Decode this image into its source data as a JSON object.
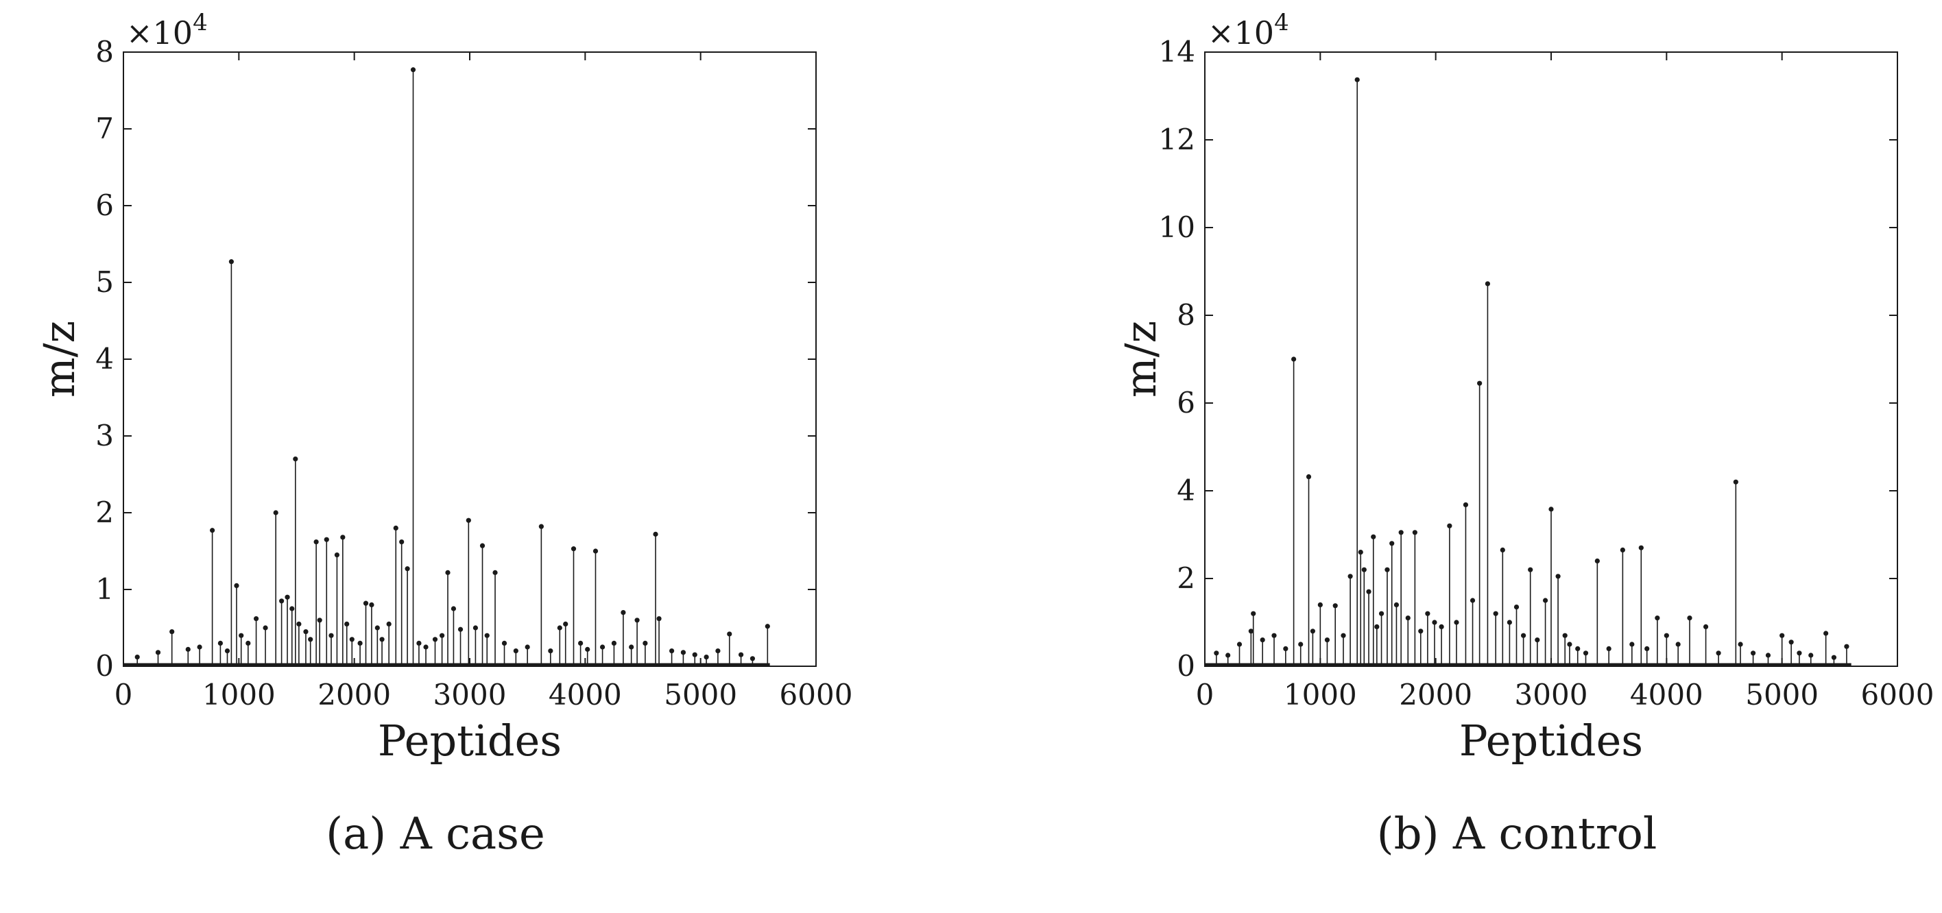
{
  "chart_data": [
    {
      "type": "stem",
      "caption": "(a) A case",
      "xlabel": "Peptides",
      "ylabel": "m/z",
      "y_multiplier": "×10",
      "y_multiplier_exp": "4",
      "xlim": [
        0,
        6000
      ],
      "ylim": [
        0,
        8
      ],
      "xticks": [
        "0",
        "1000",
        "2000",
        "3000",
        "4000",
        "5000",
        "6000"
      ],
      "yticks": [
        "0",
        "1",
        "2",
        "3",
        "4",
        "5",
        "6",
        "7",
        "8"
      ],
      "y_units": "×10^4",
      "x": [
        120,
        300,
        420,
        560,
        660,
        770,
        840,
        900,
        935,
        980,
        1020,
        1080,
        1150,
        1230,
        1320,
        1370,
        1420,
        1460,
        1490,
        1520,
        1580,
        1620,
        1670,
        1700,
        1760,
        1800,
        1850,
        1900,
        1935,
        1980,
        2050,
        2100,
        2150,
        2200,
        2240,
        2300,
        2360,
        2410,
        2460,
        2510,
        2560,
        2620,
        2700,
        2760,
        2810,
        2860,
        2920,
        2990,
        3050,
        3110,
        3150,
        3220,
        3300,
        3400,
        3500,
        3620,
        3700,
        3780,
        3830,
        3900,
        3960,
        4020,
        4090,
        4150,
        4250,
        4330,
        4400,
        4450,
        4520,
        4610,
        4640,
        4750,
        4850,
        4950,
        5050,
        5150,
        5250,
        5350,
        5450,
        5580
      ],
      "y": [
        0.12,
        0.18,
        0.45,
        0.22,
        0.25,
        1.77,
        0.3,
        0.2,
        5.27,
        1.05,
        0.4,
        0.3,
        0.62,
        0.5,
        2.0,
        0.85,
        0.9,
        0.75,
        2.7,
        0.55,
        0.45,
        0.35,
        1.62,
        0.6,
        1.65,
        0.4,
        1.45,
        1.68,
        0.55,
        0.35,
        0.3,
        0.82,
        0.8,
        0.5,
        0.35,
        0.55,
        1.8,
        1.62,
        1.27,
        7.77,
        0.3,
        0.25,
        0.35,
        0.4,
        1.22,
        0.75,
        0.48,
        1.9,
        0.5,
        1.57,
        0.4,
        1.22,
        0.3,
        0.2,
        0.25,
        1.82,
        0.2,
        0.5,
        0.55,
        1.53,
        0.3,
        0.22,
        1.5,
        0.25,
        0.3,
        0.7,
        0.25,
        0.6,
        0.3,
        1.72,
        0.62,
        0.2,
        0.18,
        0.15,
        0.12,
        0.2,
        0.42,
        0.15,
        0.1,
        0.52
      ]
    },
    {
      "type": "stem",
      "caption": "(b) A control",
      "xlabel": "Peptides",
      "ylabel": "m/z",
      "y_multiplier": "×10",
      "y_multiplier_exp": "4",
      "xlim": [
        0,
        6000
      ],
      "ylim": [
        0,
        14
      ],
      "xticks": [
        "0",
        "1000",
        "2000",
        "3000",
        "4000",
        "5000",
        "6000"
      ],
      "yticks": [
        "0",
        "2",
        "4",
        "6",
        "8",
        "10",
        "12",
        "14"
      ],
      "y_units": "×10^4",
      "x": [
        100,
        200,
        300,
        400,
        420,
        500,
        600,
        700,
        770,
        830,
        900,
        935,
        1000,
        1060,
        1130,
        1200,
        1260,
        1320,
        1350,
        1380,
        1420,
        1460,
        1490,
        1530,
        1580,
        1620,
        1660,
        1700,
        1760,
        1820,
        1870,
        1930,
        1990,
        2050,
        2120,
        2180,
        2260,
        2320,
        2380,
        2450,
        2520,
        2580,
        2640,
        2700,
        2760,
        2820,
        2880,
        2950,
        3000,
        3060,
        3120,
        3160,
        3230,
        3300,
        3400,
        3500,
        3620,
        3700,
        3780,
        3830,
        3920,
        4000,
        4100,
        4200,
        4340,
        4450,
        4600,
        4640,
        4750,
        4880,
        5000,
        5080,
        5150,
        5250,
        5380,
        5450,
        5560
      ],
      "y": [
        0.3,
        0.25,
        0.5,
        0.8,
        1.2,
        0.6,
        0.7,
        0.4,
        7.0,
        0.5,
        4.32,
        0.8,
        1.4,
        0.6,
        1.38,
        0.7,
        2.05,
        13.37,
        2.6,
        2.2,
        1.7,
        2.95,
        0.9,
        1.2,
        2.2,
        2.8,
        1.4,
        3.05,
        1.1,
        3.05,
        0.8,
        1.2,
        1.0,
        0.9,
        3.2,
        1.0,
        3.68,
        1.5,
        6.45,
        8.72,
        1.2,
        2.65,
        1.0,
        1.35,
        0.7,
        2.2,
        0.6,
        1.5,
        3.58,
        2.05,
        0.7,
        0.5,
        0.4,
        0.3,
        2.4,
        0.4,
        2.65,
        0.5,
        2.7,
        0.4,
        1.1,
        0.7,
        0.5,
        1.1,
        0.9,
        0.3,
        4.2,
        0.5,
        0.3,
        0.25,
        0.7,
        0.55,
        0.3,
        0.25,
        0.75,
        0.2,
        0.45
      ]
    }
  ]
}
